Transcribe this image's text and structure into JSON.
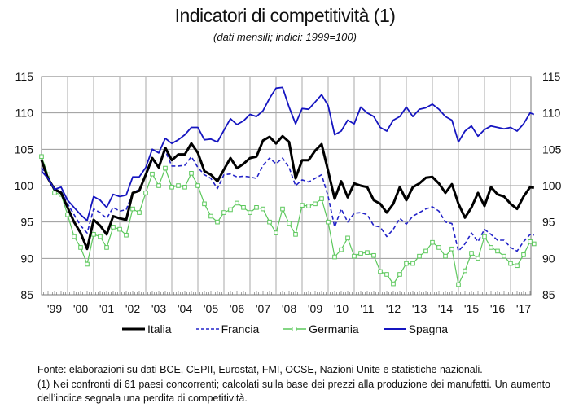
{
  "chart_data": {
    "type": "line",
    "title": "Indicatori di competitività (1)",
    "subtitle": "(dati mensili; indici: 1999=100)",
    "ylim": [
      85,
      115
    ],
    "yticks": [
      85,
      90,
      95,
      100,
      105,
      110,
      115
    ],
    "xlim": [
      1999,
      2017.9
    ],
    "xtick_labels": [
      "'99",
      "'00",
      "'01",
      "'02",
      "'03",
      "'04",
      "'05",
      "'06",
      "'07",
      "'08",
      "'09",
      "'10",
      "'11",
      "'12",
      "'13",
      "'14",
      "'15",
      "'16",
      "'17"
    ],
    "grid": true,
    "legend_position": "bottom",
    "x": [
      1999,
      1999.25,
      1999.5,
      1999.75,
      2000,
      2000.25,
      2000.5,
      2000.75,
      2001,
      2001.25,
      2001.5,
      2001.75,
      2002,
      2002.25,
      2002.5,
      2002.75,
      2003,
      2003.25,
      2003.5,
      2003.75,
      2004,
      2004.25,
      2004.5,
      2004.75,
      2005,
      2005.25,
      2005.5,
      2005.75,
      2006,
      2006.25,
      2006.5,
      2006.75,
      2007,
      2007.25,
      2007.5,
      2007.75,
      2008,
      2008.25,
      2008.5,
      2008.75,
      2009,
      2009.25,
      2009.5,
      2009.75,
      2010,
      2010.25,
      2010.5,
      2010.75,
      2011,
      2011.25,
      2011.5,
      2011.75,
      2012,
      2012.25,
      2012.5,
      2012.75,
      2013,
      2013.25,
      2013.5,
      2013.75,
      2014,
      2014.25,
      2014.5,
      2014.75,
      2015,
      2015.25,
      2015.5,
      2015.75,
      2016,
      2016.25,
      2016.5,
      2016.75,
      2017,
      2017.25,
      2017.5,
      2017.75,
      2017.9
    ],
    "series": [
      {
        "name": "Italia",
        "color": "#000000",
        "style": "solid-thick",
        "values": [
          103.5,
          101,
          99.5,
          99,
          97,
          95,
          93.5,
          91.3,
          95.3,
          94.5,
          93.3,
          95.8,
          95.5,
          95.3,
          99,
          99.3,
          101.5,
          103.8,
          102.5,
          105.2,
          103.5,
          104.3,
          104.3,
          105.8,
          104.5,
          102,
          101.5,
          100.6,
          102.2,
          103.8,
          102.4,
          103,
          103.8,
          104,
          106.2,
          106.7,
          105.8,
          106.8,
          106,
          101,
          103.5,
          103.5,
          104.8,
          105.7,
          102,
          98.2,
          100.6,
          98.4,
          100.3,
          100,
          99.8,
          98,
          97.5,
          96.3,
          97.5,
          99.8,
          98,
          99.8,
          100.3,
          101.1,
          101.2,
          100.3,
          99,
          100.2,
          97.5,
          95.6,
          97,
          99,
          97.2,
          99.8,
          98.8,
          98.5,
          97.5,
          96.8,
          98.5,
          99.8,
          99.7
        ]
      },
      {
        "name": "Francia",
        "color": "#2323c8",
        "style": "dashed",
        "values": [
          102.5,
          101,
          99.5,
          99.3,
          97.5,
          96,
          94.5,
          93.5,
          96.8,
          96.3,
          95.5,
          97,
          96.5,
          96.7,
          99,
          99.5,
          101.3,
          103.5,
          102.8,
          104.8,
          102.7,
          102.7,
          102.8,
          104,
          102.5,
          101.5,
          101,
          99.6,
          101.5,
          101.6,
          101.2,
          101.3,
          101.2,
          101,
          102.8,
          103.8,
          103,
          103.8,
          102.5,
          100,
          100.8,
          100.5,
          101,
          101.5,
          98.5,
          94.3,
          96.8,
          95,
          96.2,
          96.3,
          96,
          94.5,
          94.3,
          93,
          94,
          95.5,
          94.7,
          95.8,
          96.3,
          96.8,
          97.1,
          96.5,
          95,
          94.8,
          91,
          92,
          93.5,
          92.3,
          94,
          93.3,
          92.5,
          92.5,
          91.5,
          91,
          92.3,
          93.3,
          93.2
        ]
      },
      {
        "name": "Germania",
        "color": "#5cc85c",
        "style": "square-markers",
        "values": [
          104,
          101.5,
          99,
          98.8,
          96,
          93,
          91.5,
          89.2,
          93.3,
          93,
          91.5,
          94.3,
          94,
          93.2,
          96.8,
          96.3,
          99,
          101.6,
          100,
          102.4,
          99.8,
          100,
          99.8,
          101.7,
          100,
          97.5,
          95.8,
          95,
          96.3,
          96.7,
          97.6,
          97,
          96.3,
          97,
          96.8,
          95,
          93.5,
          96.8,
          94.8,
          93.3,
          97.3,
          97.2,
          97.5,
          98.2,
          95,
          90.2,
          91.2,
          92.8,
          90.3,
          90.7,
          90.8,
          90.4,
          88.2,
          87.8,
          86.5,
          87.8,
          89.3,
          89.3,
          90.3,
          91,
          92.2,
          91.5,
          90.3,
          91.3,
          86.4,
          88.3,
          90.7,
          90,
          93,
          91.5,
          91,
          90.3,
          89.3,
          89,
          90.5,
          92.3,
          92
        ]
      },
      {
        "name": "Spagna",
        "color": "#1515c0",
        "style": "solid",
        "values": [
          102,
          101,
          99.5,
          99.8,
          98,
          97,
          96,
          95.2,
          98.5,
          98,
          97,
          98.8,
          98.5,
          98.7,
          101.2,
          101.2,
          102.5,
          105,
          104.5,
          106.5,
          105.8,
          106.3,
          107,
          108,
          108,
          106.3,
          106.4,
          106,
          107.6,
          109.2,
          108.4,
          108.9,
          109.8,
          109.5,
          110.3,
          112,
          113.4,
          113.5,
          110.8,
          108.5,
          110.6,
          110.5,
          111.5,
          112.5,
          111,
          107,
          107.5,
          109,
          108.5,
          110.8,
          110,
          109.5,
          108,
          107.5,
          109,
          109.5,
          110.8,
          109.5,
          110.5,
          110.7,
          111.2,
          110.5,
          109.5,
          109,
          106,
          107.5,
          108.2,
          106.8,
          107.7,
          108.2,
          108,
          107.8,
          108,
          107.5,
          108.5,
          110,
          109.8
        ]
      }
    ]
  },
  "notes": {
    "source": "Fonte: elaborazioni su dati BCE, CEPII, Eurostat, FMI, OCSE, Nazioni Unite e statistiche nazionali.",
    "footnote": "(1) Nei confronti di 61 paesi concorrenti; calcolati sulla base dei prezzi alla produzione dei manufatti.  Un aumento dell’indice segnala una perdita di competitività."
  }
}
